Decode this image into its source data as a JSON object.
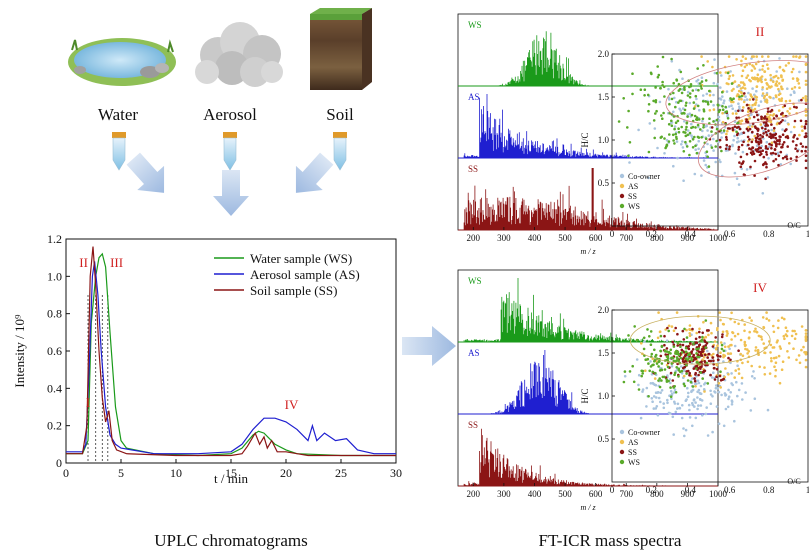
{
  "sources": {
    "items": [
      {
        "label": "Water"
      },
      {
        "label": "Aerosol"
      },
      {
        "label": "Soil"
      }
    ]
  },
  "captions": {
    "left": "UPLC chromatograms",
    "right": "FT-ICR mass spectra"
  },
  "chart_data": [
    {
      "type": "line",
      "xlabel": "t / min",
      "ylabel": "Intensity / 10⁹",
      "xlim": [
        0,
        30
      ],
      "ylim": [
        0,
        1.2
      ],
      "xticks": [
        0,
        5,
        10,
        15,
        20,
        25,
        30
      ],
      "yticks": [
        0,
        0.2,
        0.4,
        0.6,
        0.8,
        1.0,
        1.2
      ],
      "yticklabels": [
        "0",
        "0.2",
        "0.4",
        "0.6",
        "0.8",
        "1.0",
        "1.2"
      ],
      "legend_position": "top-right",
      "series": [
        {
          "name": "Water sample (WS)",
          "color": "#1a9a1a",
          "points": [
            [
              0,
              0.05
            ],
            [
              1.5,
              0.05
            ],
            [
              2.0,
              0.12
            ],
            [
              2.3,
              0.75
            ],
            [
              2.7,
              1.0
            ],
            [
              3.0,
              1.1
            ],
            [
              3.3,
              1.12
            ],
            [
              3.6,
              1.05
            ],
            [
              4.0,
              0.7
            ],
            [
              4.5,
              0.3
            ],
            [
              5.0,
              0.12
            ],
            [
              5.5,
              0.08
            ],
            [
              8,
              0.05
            ],
            [
              12,
              0.04
            ],
            [
              15,
              0.05
            ],
            [
              16,
              0.08
            ],
            [
              17,
              0.15
            ],
            [
              17.5,
              0.17
            ],
            [
              18,
              0.16
            ],
            [
              18.5,
              0.13
            ],
            [
              19,
              0.1
            ],
            [
              20,
              0.07
            ],
            [
              21,
              0.05
            ],
            [
              25,
              0.04
            ],
            [
              30,
              0.04
            ]
          ]
        },
        {
          "name": "Aerosol sample (AS)",
          "color": "#1f1fd0",
          "points": [
            [
              0,
              0.06
            ],
            [
              1.5,
              0.06
            ],
            [
              1.8,
              0.1
            ],
            [
              2.1,
              0.5
            ],
            [
              2.4,
              1.0
            ],
            [
              2.6,
              1.08
            ],
            [
              2.9,
              0.9
            ],
            [
              3.2,
              0.6
            ],
            [
              3.6,
              0.3
            ],
            [
              4.0,
              0.15
            ],
            [
              4.5,
              0.1
            ],
            [
              5.0,
              0.08
            ],
            [
              8,
              0.05
            ],
            [
              12,
              0.05
            ],
            [
              15,
              0.06
            ],
            [
              16,
              0.1
            ],
            [
              17,
              0.18
            ],
            [
              18,
              0.24
            ],
            [
              19,
              0.24
            ],
            [
              20,
              0.22
            ],
            [
              21,
              0.18
            ],
            [
              22,
              0.12
            ],
            [
              22.4,
              0.2
            ],
            [
              22.8,
              0.12
            ],
            [
              23.5,
              0.16
            ],
            [
              24.5,
              0.12
            ],
            [
              25.5,
              0.13
            ],
            [
              26.5,
              0.07
            ],
            [
              28,
              0.05
            ],
            [
              30,
              0.05
            ]
          ]
        },
        {
          "name": "Soil sample (SS)",
          "color": "#8b1515",
          "points": [
            [
              0,
              0.05
            ],
            [
              1.5,
              0.05
            ],
            [
              1.9,
              0.2
            ],
            [
              2.2,
              1.0
            ],
            [
              2.45,
              1.16
            ],
            [
              2.7,
              0.95
            ],
            [
              3.0,
              0.6
            ],
            [
              3.3,
              0.35
            ],
            [
              3.6,
              0.22
            ],
            [
              3.9,
              0.28
            ],
            [
              4.2,
              0.12
            ],
            [
              4.6,
              0.07
            ],
            [
              5.5,
              0.05
            ],
            [
              10,
              0.04
            ],
            [
              15,
              0.04
            ],
            [
              16,
              0.05
            ],
            [
              16.5,
              0.09
            ],
            [
              17.2,
              0.16
            ],
            [
              17.6,
              0.1
            ],
            [
              18,
              0.14
            ],
            [
              18.3,
              0.08
            ],
            [
              18.7,
              0.12
            ],
            [
              19.2,
              0.06
            ],
            [
              20,
              0.06
            ],
            [
              21,
              0.05
            ],
            [
              22,
              0.04
            ],
            [
              30,
              0.04
            ]
          ]
        }
      ],
      "annotations": [
        {
          "text": "I",
          "x": 2.0,
          "y": 0.3
        },
        {
          "text": "II",
          "x": 1.6,
          "y": 1.05
        },
        {
          "text": "III",
          "x": 4.6,
          "y": 1.05
        },
        {
          "text": "IV",
          "x": 20.5,
          "y": 0.29
        }
      ],
      "vlines": [
        2.0,
        2.7,
        3.3,
        3.8
      ]
    },
    {
      "type": "bar",
      "panel": "II",
      "xlabel": "m / z",
      "xlim": [
        150,
        1000
      ],
      "xticks": [
        200,
        300,
        400,
        500,
        600,
        700,
        800,
        900,
        1000
      ],
      "series": [
        {
          "name": "WS",
          "color": "#1a9a1a",
          "center": 430,
          "spread": 70,
          "peak": 1.0,
          "shape": "gaussian"
        },
        {
          "name": "AS",
          "color": "#1f1fd0",
          "center": 260,
          "spread": 150,
          "peak": 1.0,
          "shape": "decay"
        },
        {
          "name": "SS",
          "color": "#8b1515",
          "center": 300,
          "spread": 300,
          "peak": 0.55,
          "shape": "flat",
          "spike": 590
        }
      ]
    },
    {
      "type": "scatter",
      "panel": "II",
      "xlabel": "O/C",
      "ylabel": "H/C",
      "xlim": [
        0,
        1.0
      ],
      "ylim": [
        0,
        2.0
      ],
      "xticks": [
        0.2,
        0.4,
        0.6,
        0.8,
        1.0
      ],
      "yticks": [
        0.5,
        1.0,
        1.5,
        2.0
      ],
      "yticklabels": [
        "0.5",
        "1.0",
        "1.5",
        "2.0"
      ],
      "legend": [
        "Co-owner",
        "AS",
        "SS",
        "WS"
      ],
      "legend_colors": [
        "#a9c4de",
        "#f0c050",
        "#8b1515",
        "#5aaa2a"
      ]
    },
    {
      "type": "bar",
      "panel": "IV",
      "xlabel": "m / z",
      "xlim": [
        150,
        1000
      ],
      "xticks": [
        200,
        300,
        400,
        500,
        600,
        700,
        800,
        900,
        1000
      ],
      "series": [
        {
          "name": "WS",
          "color": "#1a9a1a",
          "center": 330,
          "spread": 150,
          "peak": 1.0,
          "shape": "decay"
        },
        {
          "name": "AS",
          "color": "#1f1fd0",
          "center": 420,
          "spread": 80,
          "peak": 1.0,
          "shape": "gaussian"
        },
        {
          "name": "SS",
          "color": "#8b1515",
          "center": 260,
          "spread": 120,
          "peak": 1.0,
          "shape": "decay"
        }
      ]
    },
    {
      "type": "scatter",
      "panel": "IV",
      "xlabel": "O/C",
      "ylabel": "H/C",
      "xlim": [
        0,
        1.0
      ],
      "ylim": [
        0,
        2.0
      ],
      "xticks": [
        0.2,
        0.4,
        0.6,
        0.8,
        1.0
      ],
      "yticks": [
        0.5,
        1.0,
        1.5,
        2.0
      ],
      "yticklabels": [
        "0.5",
        "1.0",
        "1.5",
        "2.0"
      ],
      "legend": [
        "Co-owner",
        "AS",
        "SS",
        "WS"
      ],
      "legend_colors": [
        "#a9c4de",
        "#f0c050",
        "#8b1515",
        "#5aaa2a"
      ]
    }
  ],
  "panel_labels": [
    "II",
    "IV"
  ]
}
